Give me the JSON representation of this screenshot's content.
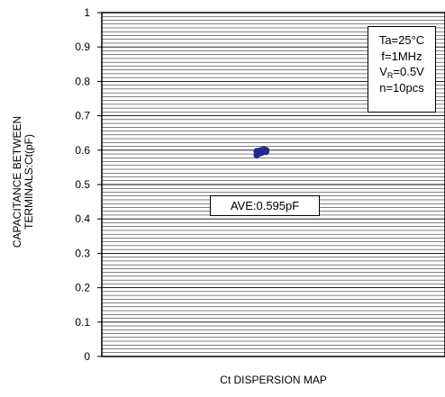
{
  "chart_data": {
    "type": "scatter",
    "title": "",
    "xlabel": "Ct DISPERSION MAP",
    "ylabel_lines": [
      "CAPACITANCE BETWEEN",
      "TERMINALS:Ct(pF)"
    ],
    "ylim": [
      0,
      1
    ],
    "yticks": [
      "0",
      "0.1",
      "0.2",
      "0.3",
      "0.4",
      "0.5",
      "0.6",
      "0.7",
      "0.8",
      "0.9",
      "1"
    ],
    "grid": true,
    "x_axis_ticks": false,
    "series": [
      {
        "values": [
          0.585,
          0.59,
          0.592,
          0.595,
          0.595,
          0.597,
          0.598,
          0.6,
          0.602,
          0.6
        ],
        "color": "#1f2a8c"
      }
    ],
    "annotations": {
      "conditions": {
        "ta": "Ta=25°C",
        "f": "f=1MHz",
        "vr_prefix": "V",
        "vr_sub": "R",
        "vr_suffix": "=0.5V",
        "n": "n=10pcs"
      },
      "average": "AVE:0.595pF"
    }
  }
}
